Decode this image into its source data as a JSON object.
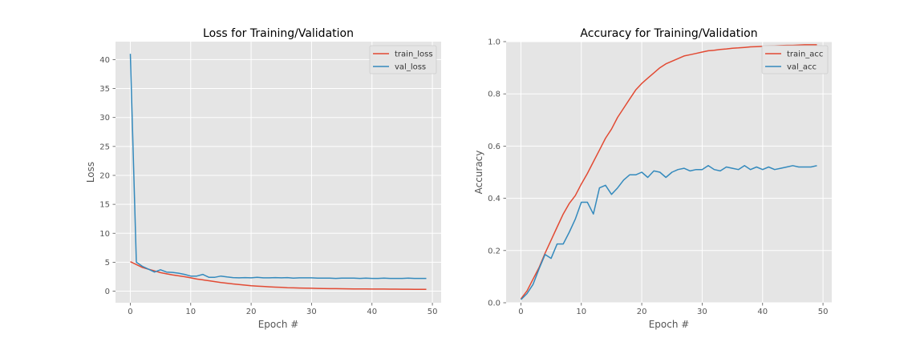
{
  "chart_data": [
    {
      "type": "line",
      "title": "Loss for Training/Validation",
      "xlabel": "Epoch #",
      "ylabel": "Loss",
      "xlim": [
        -2.45,
        51.45
      ],
      "ylim": [
        -2.0,
        43.1
      ],
      "xticks": [
        0,
        10,
        20,
        30,
        40,
        50
      ],
      "yticks": [
        0,
        5,
        10,
        15,
        20,
        25,
        30,
        35,
        40
      ],
      "grid": true,
      "legend": "top-right",
      "x": [
        0,
        1,
        2,
        3,
        4,
        5,
        6,
        7,
        8,
        9,
        10,
        11,
        12,
        13,
        14,
        15,
        16,
        17,
        18,
        19,
        20,
        21,
        22,
        23,
        24,
        25,
        26,
        27,
        28,
        29,
        30,
        31,
        32,
        33,
        34,
        35,
        36,
        37,
        38,
        39,
        40,
        41,
        42,
        43,
        44,
        45,
        46,
        47,
        48,
        49
      ],
      "series": [
        {
          "name": "train_loss",
          "color": "#e24a33",
          "values": [
            5.1,
            4.6,
            4.1,
            3.8,
            3.5,
            3.2,
            3.0,
            2.8,
            2.65,
            2.5,
            2.3,
            2.1,
            1.95,
            1.8,
            1.65,
            1.5,
            1.38,
            1.25,
            1.15,
            1.05,
            0.95,
            0.88,
            0.82,
            0.75,
            0.7,
            0.65,
            0.6,
            0.58,
            0.55,
            0.52,
            0.5,
            0.48,
            0.46,
            0.44,
            0.43,
            0.42,
            0.41,
            0.4,
            0.39,
            0.38,
            0.37,
            0.36,
            0.36,
            0.35,
            0.35,
            0.34,
            0.34,
            0.33,
            0.33,
            0.33
          ]
        },
        {
          "name": "val_loss",
          "color": "#348abd",
          "values": [
            41.0,
            5.0,
            4.3,
            3.8,
            3.3,
            3.7,
            3.3,
            3.25,
            3.1,
            2.9,
            2.6,
            2.6,
            2.9,
            2.4,
            2.4,
            2.6,
            2.45,
            2.35,
            2.3,
            2.35,
            2.3,
            2.4,
            2.3,
            2.3,
            2.35,
            2.3,
            2.35,
            2.25,
            2.3,
            2.3,
            2.3,
            2.25,
            2.25,
            2.25,
            2.2,
            2.25,
            2.25,
            2.25,
            2.2,
            2.25,
            2.2,
            2.2,
            2.25,
            2.2,
            2.2,
            2.2,
            2.25,
            2.2,
            2.2,
            2.2
          ]
        }
      ]
    },
    {
      "type": "line",
      "title": "Accuracy for Training/Validation",
      "xlabel": "Epoch #",
      "ylabel": "Accuracy",
      "xlim": [
        -2.45,
        51.45
      ],
      "ylim": [
        0.0,
        1.0
      ],
      "xticks": [
        0,
        10,
        20,
        30,
        40,
        50
      ],
      "yticks": [
        0.0,
        0.2,
        0.4,
        0.6,
        0.8,
        1.0
      ],
      "ytick_labels": [
        "0.0",
        "0.2",
        "0.4",
        "0.6",
        "0.8",
        "1.0"
      ],
      "grid": true,
      "legend": "top-right",
      "x": [
        0,
        1,
        2,
        3,
        4,
        5,
        6,
        7,
        8,
        9,
        10,
        11,
        12,
        13,
        14,
        15,
        16,
        17,
        18,
        19,
        20,
        21,
        22,
        23,
        24,
        25,
        26,
        27,
        28,
        29,
        30,
        31,
        32,
        33,
        34,
        35,
        36,
        37,
        38,
        39,
        40,
        41,
        42,
        43,
        44,
        45,
        46,
        47,
        48,
        49
      ],
      "series": [
        {
          "name": "train_acc",
          "color": "#e24a33",
          "values": [
            0.015,
            0.045,
            0.09,
            0.135,
            0.19,
            0.24,
            0.29,
            0.34,
            0.38,
            0.41,
            0.455,
            0.495,
            0.54,
            0.585,
            0.63,
            0.665,
            0.71,
            0.745,
            0.78,
            0.815,
            0.84,
            0.86,
            0.88,
            0.9,
            0.915,
            0.925,
            0.935,
            0.945,
            0.95,
            0.955,
            0.96,
            0.965,
            0.967,
            0.97,
            0.972,
            0.975,
            0.976,
            0.978,
            0.98,
            0.981,
            0.982,
            0.983,
            0.984,
            0.985,
            0.986,
            0.986,
            0.987,
            0.988,
            0.988,
            0.988
          ]
        },
        {
          "name": "val_acc",
          "color": "#348abd",
          "values": [
            0.012,
            0.035,
            0.07,
            0.13,
            0.185,
            0.17,
            0.225,
            0.225,
            0.27,
            0.32,
            0.385,
            0.385,
            0.34,
            0.44,
            0.45,
            0.415,
            0.44,
            0.47,
            0.49,
            0.49,
            0.5,
            0.48,
            0.505,
            0.5,
            0.48,
            0.5,
            0.51,
            0.515,
            0.505,
            0.51,
            0.51,
            0.525,
            0.51,
            0.505,
            0.52,
            0.515,
            0.51,
            0.525,
            0.51,
            0.52,
            0.51,
            0.52,
            0.51,
            0.515,
            0.52,
            0.525,
            0.52,
            0.52,
            0.52,
            0.525
          ]
        }
      ]
    }
  ]
}
